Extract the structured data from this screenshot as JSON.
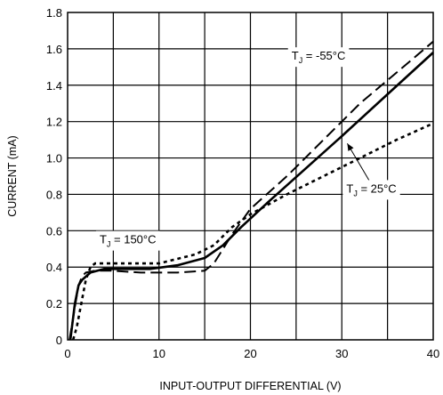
{
  "chart_data": {
    "type": "line",
    "xlabel": "INPUT-OUTPUT DIFFERENTIAL (V)",
    "ylabel": "CURRENT (mA)",
    "xlim": [
      0,
      40
    ],
    "ylim": [
      0,
      1.8
    ],
    "x_ticks": [
      "0",
      "10",
      "20",
      "30",
      "40"
    ],
    "y_ticks": [
      "0",
      "0.2",
      "0.4",
      "0.6",
      "0.8",
      "1.0",
      "1.2",
      "1.4",
      "1.6",
      "1.8"
    ],
    "grid": true,
    "series": [
      {
        "name": "T_J = -55°C",
        "style": "long-dash",
        "color": "#000000",
        "x": [
          0.2,
          0.8,
          1.2,
          1.6,
          2.0,
          3.0,
          5.0,
          8.0,
          12.0,
          15.0,
          16.0,
          17.0,
          18.0,
          20.0,
          24.0,
          28.0,
          32.0,
          36.0,
          40.0
        ],
        "y": [
          0.0,
          0.18,
          0.3,
          0.35,
          0.37,
          0.38,
          0.38,
          0.37,
          0.37,
          0.38,
          0.42,
          0.5,
          0.58,
          0.72,
          0.9,
          1.1,
          1.3,
          1.47,
          1.64
        ]
      },
      {
        "name": "T_J = 25°C",
        "style": "solid",
        "color": "#000000",
        "x": [
          0.3,
          0.8,
          1.2,
          1.6,
          2.5,
          4.0,
          6.0,
          9.0,
          12.0,
          15.0,
          17.0,
          19.0,
          22.0,
          26.0,
          30.0,
          35.0,
          40.0
        ],
        "y": [
          0.0,
          0.2,
          0.3,
          0.33,
          0.37,
          0.39,
          0.39,
          0.39,
          0.41,
          0.45,
          0.52,
          0.62,
          0.76,
          0.94,
          1.12,
          1.35,
          1.58
        ]
      },
      {
        "name": "T_J = 150°C",
        "style": "short-dash",
        "color": "#000000",
        "x": [
          0.6,
          1.0,
          1.5,
          2.0,
          2.5,
          3.0,
          4.0,
          6.0,
          10.0,
          14.0,
          16.0,
          18.0,
          20.0,
          24.0,
          28.0,
          32.0,
          36.0,
          40.0
        ],
        "y": [
          0.0,
          0.07,
          0.2,
          0.33,
          0.4,
          0.42,
          0.42,
          0.42,
          0.42,
          0.47,
          0.52,
          0.62,
          0.69,
          0.8,
          0.9,
          1.0,
          1.1,
          1.19
        ]
      }
    ],
    "annotations": [
      {
        "sub": "J",
        "text": " = -55°C",
        "x": 24.5,
        "y": 1.54
      },
      {
        "sub": "J",
        "text": " = 25°C",
        "x": 30.5,
        "y": 0.81
      },
      {
        "sub": "J",
        "text": " = 150°C",
        "x": 3.5,
        "y": 0.53
      }
    ]
  }
}
